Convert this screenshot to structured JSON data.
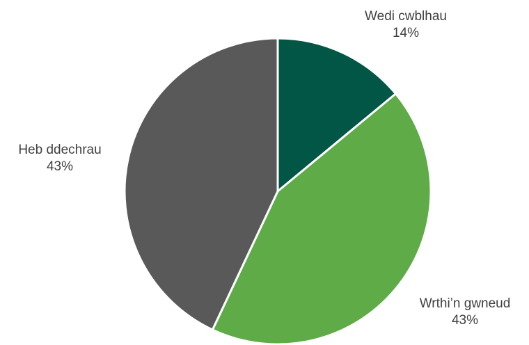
{
  "chart_data": {
    "type": "pie",
    "slices": [
      {
        "label": "Wedi cwblhau",
        "value": 14,
        "value_label": "14%",
        "color": "#025645"
      },
      {
        "label": "Wrthi’n gwneud",
        "value": 43,
        "value_label": "43%",
        "color": "#5eab47"
      },
      {
        "label": "Heb ddechrau",
        "value": 43,
        "value_label": "43%",
        "color": "#595959"
      }
    ],
    "start_angle_deg": 0,
    "direction": "clockwise",
    "legend": "none"
  }
}
